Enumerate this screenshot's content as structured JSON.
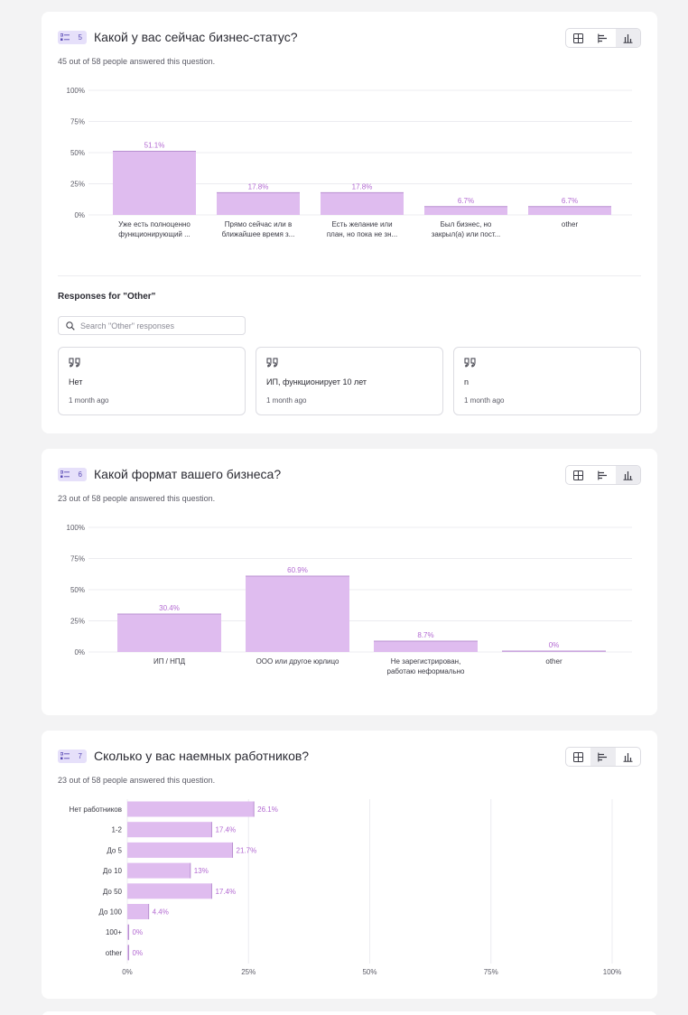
{
  "questions": [
    {
      "number": "5",
      "title": "Какой у вас сейчас бизнес-статус?",
      "answered": "45 out of 58 people answered this question.",
      "other_section": {
        "title": "Responses for \"Other\"",
        "search_placeholder": "Search \"Other\" responses",
        "responses": [
          {
            "text": "Нет",
            "time": "1 month ago"
          },
          {
            "text": "ИП, функционирует 10 лет",
            "time": "1 month ago"
          },
          {
            "text": "n",
            "time": "1 month ago"
          }
        ]
      }
    },
    {
      "number": "6",
      "title": "Какой формат вашего бизнеса?",
      "answered": "23 out of 58 people answered this question."
    },
    {
      "number": "7",
      "title": "Сколько у вас наемных работников?",
      "answered": "23 out of 58 people answered this question."
    }
  ],
  "icons": {
    "question_type": "list-icon",
    "view_table": "table-grid-icon",
    "view_horizontal_bar": "horizontal-bar-chart-icon",
    "view_vertical_bar": "vertical-bar-chart-icon",
    "search": "search-icon",
    "quote": "quote-icon"
  },
  "colors": {
    "bar_fill": "#dfbcef",
    "bar_edge": "#b88fd0",
    "value_label": "#b36ad2",
    "grid": "#ececf0",
    "badge_bg": "#e6e0fa"
  },
  "chart_data": [
    {
      "type": "bar",
      "orientation": "vertical",
      "categories": [
        [
          "Уже есть полноценно",
          "функционирующий ..."
        ],
        [
          "Прямо сейчас или в",
          "ближайшее время з..."
        ],
        [
          "Есть желание или",
          "план, но пока не зн..."
        ],
        [
          "Был бизнес, но",
          "закрыл(а) или пост..."
        ],
        [
          "other"
        ]
      ],
      "values": [
        51.1,
        17.8,
        17.8,
        6.7,
        6.7
      ],
      "value_labels": [
        "51.1%",
        "17.8%",
        "17.8%",
        "6.7%",
        "6.7%"
      ],
      "ylim": [
        0,
        100
      ],
      "ticks": [
        "0%",
        "25%",
        "50%",
        "75%",
        "100%"
      ],
      "grid": true
    },
    {
      "type": "bar",
      "orientation": "vertical",
      "categories": [
        [
          "ИП / НПД"
        ],
        [
          "ООО или другое юрлицо"
        ],
        [
          "Не зарегистрирован,",
          "работаю неформально"
        ],
        [
          "other"
        ]
      ],
      "values": [
        30.4,
        60.9,
        8.7,
        0
      ],
      "value_labels": [
        "30.4%",
        "60.9%",
        "8.7%",
        "0%"
      ],
      "ylim": [
        0,
        100
      ],
      "ticks": [
        "0%",
        "25%",
        "50%",
        "75%",
        "100%"
      ],
      "grid": true
    },
    {
      "type": "bar",
      "orientation": "horizontal",
      "categories": [
        [
          "Нет работников"
        ],
        [
          "1-2"
        ],
        [
          "До 5"
        ],
        [
          "До 10"
        ],
        [
          "До 50"
        ],
        [
          "До 100"
        ],
        [
          "100+"
        ],
        [
          "other"
        ]
      ],
      "values": [
        26.1,
        17.4,
        21.7,
        13,
        17.4,
        4.4,
        0,
        0
      ],
      "value_labels": [
        "26.1%",
        "17.4%",
        "21.7%",
        "13%",
        "17.4%",
        "4.4%",
        "0%",
        "0%"
      ],
      "xlim": [
        0,
        100
      ],
      "ticks": [
        "0%",
        "25%",
        "50%",
        "75%",
        "100%"
      ],
      "grid": true
    }
  ]
}
